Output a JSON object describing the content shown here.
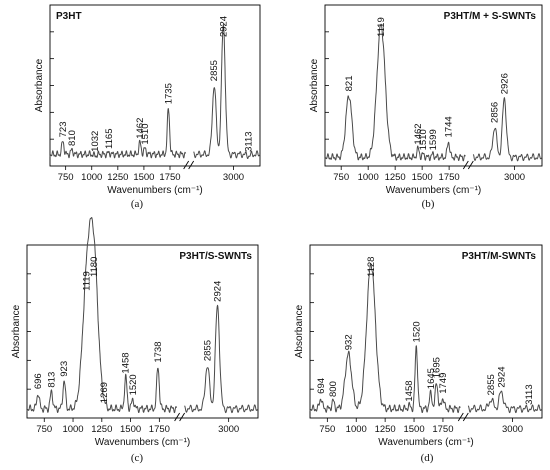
{
  "chart_data": [
    {
      "type": "line",
      "panel": "(a)",
      "title": "P3HT",
      "xlabel": "Wavenumbers (cm⁻¹)",
      "ylabel": "Absorbance",
      "x_segments": [
        [
          600,
          1900
        ],
        [
          2700,
          3200
        ]
      ],
      "x_ticks": [
        "750",
        "1000",
        "1250",
        "1500",
        "1750",
        "3000"
      ],
      "y_major_ticks": 6,
      "baseline": 0.06,
      "peaks": [
        {
          "label": "723",
          "x": 723,
          "y": 0.15
        },
        {
          "label": "810",
          "x": 810,
          "y": 0.09
        },
        {
          "label": "1032",
          "x": 1032,
          "y": 0.05
        },
        {
          "label": "1165",
          "x": 1165,
          "y": 0.07
        },
        {
          "label": "1462",
          "x": 1462,
          "y": 0.14
        },
        {
          "label": "1510",
          "x": 1510,
          "y": 0.1
        },
        {
          "label": "1735",
          "x": 1735,
          "y": 0.38
        },
        {
          "label": "2855",
          "x": 2855,
          "y": 0.54
        },
        {
          "label": "2924",
          "x": 2924,
          "y": 0.96
        },
        {
          "label": "3113",
          "x": 3113,
          "y": 0.05
        }
      ]
    },
    {
      "type": "line",
      "panel": "(b)",
      "title": "P3HT/M + S-SWNTs",
      "xlabel": "Wavenumbers (cm⁻¹)",
      "ylabel": "Absorbance",
      "x_segments": [
        [
          600,
          1900
        ],
        [
          2700,
          3200
        ]
      ],
      "x_ticks": [
        "750",
        "1000",
        "1250",
        "1500",
        "1750",
        "3000"
      ],
      "y_major_ticks": 6,
      "baseline": 0.04,
      "peaks": [
        {
          "label": "821",
          "x": 821,
          "y": 0.47
        },
        {
          "label": "1119",
          "x": 1119,
          "y": 0.96
        },
        {
          "label": "1462",
          "x": 1462,
          "y": 0.1
        },
        {
          "label": "1510",
          "x": 1510,
          "y": 0.06
        },
        {
          "label": "1599",
          "x": 1599,
          "y": 0.06
        },
        {
          "label": "1744",
          "x": 1744,
          "y": 0.15
        },
        {
          "label": "2856",
          "x": 2856,
          "y": 0.25
        },
        {
          "label": "2926",
          "x": 2926,
          "y": 0.45
        }
      ]
    },
    {
      "type": "line",
      "panel": "(c)",
      "title": "P3HT/S-SWNTs",
      "xlabel": "Wavenumbers (cm⁻¹)",
      "ylabel": "Absorbance",
      "x_segments": [
        [
          600,
          1900
        ],
        [
          2700,
          3200
        ]
      ],
      "x_ticks": [
        "750",
        "1000",
        "1250",
        "1500",
        "1750",
        "3000"
      ],
      "y_major_ticks": 6,
      "baseline": 0.04,
      "peaks": [
        {
          "label": "696",
          "x": 696,
          "y": 0.14
        },
        {
          "label": "813",
          "x": 813,
          "y": 0.15
        },
        {
          "label": "923",
          "x": 923,
          "y": 0.22
        },
        {
          "label": "1119",
          "x": 1119,
          "y": 0.77
        },
        {
          "label": "1180",
          "x": 1180,
          "y": 0.97
        },
        {
          "label": "1269",
          "x": 1269,
          "y": 0.05
        },
        {
          "label": "1458",
          "x": 1458,
          "y": 0.24
        },
        {
          "label": "1520",
          "x": 1520,
          "y": 0.1
        },
        {
          "label": "1738",
          "x": 1738,
          "y": 0.31
        },
        {
          "label": "2855",
          "x": 2855,
          "y": 0.32
        },
        {
          "label": "2924",
          "x": 2924,
          "y": 0.7
        }
      ]
    },
    {
      "type": "line",
      "panel": "(d)",
      "title": "P3HT/M-SWNTs",
      "xlabel": "Wavenumbers (cm⁻¹)",
      "ylabel": "Absorbance",
      "x_segments": [
        [
          600,
          1900
        ],
        [
          2700,
          3200
        ]
      ],
      "x_ticks": [
        "750",
        "1000",
        "1250",
        "1500",
        "1750",
        "3000"
      ],
      "y_major_ticks": 6,
      "baseline": 0.04,
      "peaks": [
        {
          "label": "694",
          "x": 694,
          "y": 0.11
        },
        {
          "label": "800",
          "x": 800,
          "y": 0.09
        },
        {
          "label": "932",
          "x": 932,
          "y": 0.39
        },
        {
          "label": "1128",
          "x": 1128,
          "y": 0.97
        },
        {
          "label": "1458",
          "x": 1458,
          "y": 0.06
        },
        {
          "label": "1520",
          "x": 1520,
          "y": 0.44
        },
        {
          "label": "1645",
          "x": 1645,
          "y": 0.14
        },
        {
          "label": "1695",
          "x": 1695,
          "y": 0.21
        },
        {
          "label": "1749",
          "x": 1749,
          "y": 0.11
        },
        {
          "label": "2855",
          "x": 2855,
          "y": 0.1
        },
        {
          "label": "2924",
          "x": 2924,
          "y": 0.15
        },
        {
          "label": "3113",
          "x": 3113,
          "y": 0.04
        }
      ]
    }
  ]
}
